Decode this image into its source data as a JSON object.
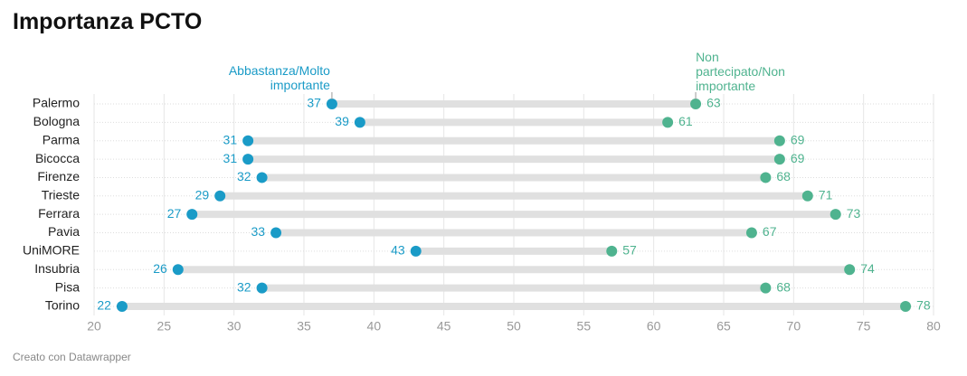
{
  "chart_data": {
    "type": "dot-range",
    "title": "Importanza PCTO",
    "source": "Creato con Datawrapper",
    "categories": [
      "Palermo",
      "Bologna",
      "Parma",
      "Bicocca",
      "Firenze",
      "Trieste",
      "Ferrara",
      "Pavia",
      "UniMORE",
      "Insubria",
      "Pisa",
      "Torino"
    ],
    "series": [
      {
        "name": "Abbastanza/Molto importante",
        "color": "#1a9bc7",
        "values": [
          37,
          39,
          31,
          31,
          32,
          29,
          27,
          33,
          43,
          26,
          32,
          22
        ]
      },
      {
        "name": "Non partecipato/Non importante",
        "color": "#4fb38f",
        "values": [
          63,
          61,
          69,
          69,
          68,
          71,
          73,
          67,
          57,
          74,
          68,
          78
        ]
      }
    ],
    "xlim": [
      20,
      80
    ],
    "xticks": [
      20,
      25,
      30,
      35,
      40,
      45,
      50,
      55,
      60,
      65,
      70,
      75,
      80
    ],
    "grid": true
  }
}
